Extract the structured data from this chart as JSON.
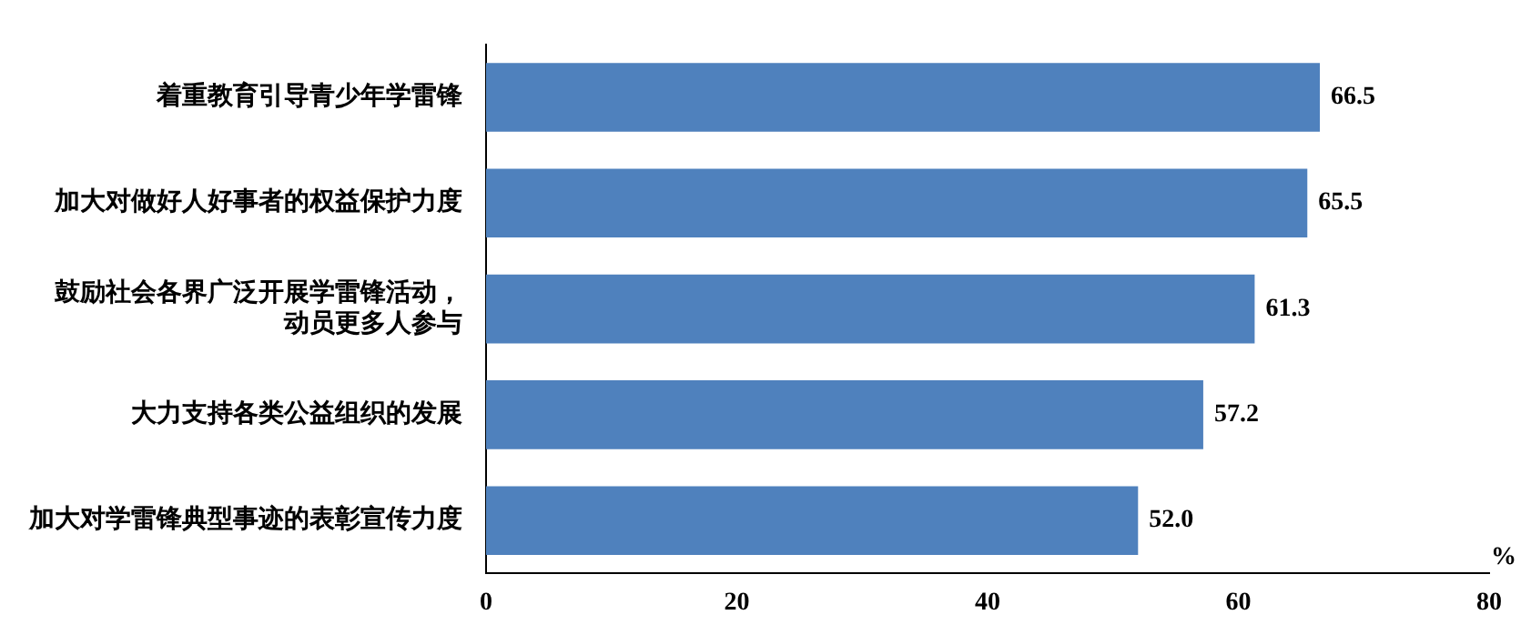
{
  "chart_data": {
    "type": "bar",
    "orientation": "horizontal",
    "xlabel": "%",
    "categories": [
      "着重教育引导青少年学雷锋",
      "加大对做好人好事者的权益保护力度",
      "鼓励社会各界广泛开展学雷锋活动，动员更多人参与",
      "大力支持各类公益组织的发展",
      "加大对学雷锋典型事迹的表彰宣传力度"
    ],
    "values": [
      66.5,
      65.5,
      61.3,
      57.2,
      52.0
    ],
    "value_labels": [
      "66.5",
      "65.5",
      "61.3",
      "57.2",
      "52.0"
    ],
    "color": "#4f81bd",
    "xlim": [
      0,
      80
    ],
    "xticks": [
      0,
      20,
      40,
      60,
      80
    ],
    "grid": false,
    "legend": false
  }
}
